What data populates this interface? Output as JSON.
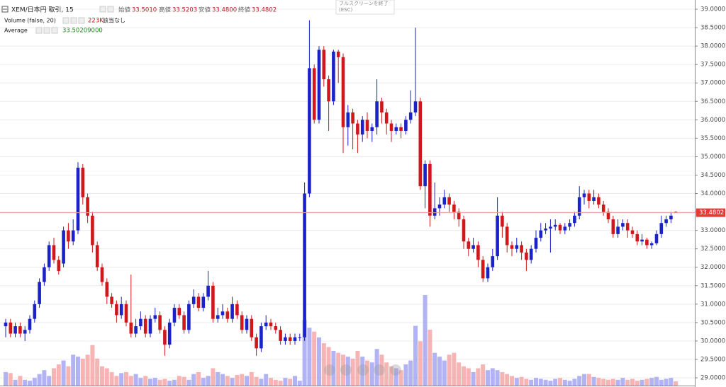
{
  "chart_data": {
    "type": "candlestick",
    "title": "XEM/日本円 取引, 15",
    "header": {
      "open_label": "始値",
      "open": "33.5010",
      "high_label": "高値",
      "high": "33.5203",
      "low_label": "安値",
      "low": "33.4800",
      "close_label": "終値",
      "close": "33.4802"
    },
    "volume_study": {
      "name": "Volume (false, 20)",
      "value": "223K",
      "note": "該当なし"
    },
    "average_study": {
      "name": "Average",
      "value": "33.50209000"
    },
    "tooltip": {
      "line1": "フルスクリーンを終了",
      "line2": "(ESC)"
    },
    "open": [
      30.4,
      30.5,
      30.2,
      30.4,
      30.2,
      30.3,
      30.6,
      31.0,
      31.6,
      32.0,
      32.6,
      32.2,
      32.1,
      33.0,
      32.7,
      33.0,
      34.7,
      33.9,
      33.4,
      32.6,
      32.0,
      31.6,
      31.2,
      31.0,
      30.7,
      31.0,
      30.5,
      30.2,
      30.4,
      30.6,
      30.2,
      30.6,
      30.7,
      30.3,
      29.9,
      30.5,
      30.9,
      30.7,
      30.3,
      31.0,
      31.2,
      30.9,
      31.2,
      31.5,
      30.6,
      30.7,
      30.8,
      30.6,
      31.0,
      30.7,
      30.3,
      30.6,
      30.1,
      29.8,
      30.4,
      30.5,
      30.4,
      30.3,
      30.0,
      30.1,
      30.0,
      30.1,
      30.1,
      34.0,
      37.4,
      36.0,
      37.9,
      37.1,
      36.5,
      37.85,
      37.7,
      35.8,
      36.2,
      35.9,
      35.6,
      36.0,
      35.7,
      35.8,
      36.5,
      36.2,
      35.9,
      35.7,
      35.8,
      35.7,
      36.0,
      36.2,
      36.5,
      34.2,
      34.8,
      33.4,
      33.6,
      33.7,
      33.9,
      33.7,
      33.5,
      33.3,
      32.7,
      32.5,
      32.6,
      32.2,
      31.7,
      32.0,
      32.3,
      33.4,
      33.1,
      32.6,
      32.5,
      32.6,
      32.4,
      32.2,
      32.5,
      32.8,
      33.0,
      33.05,
      33.1,
      33.15,
      33.0,
      33.1,
      33.2,
      33.4,
      33.9,
      34.0,
      33.8,
      33.9,
      33.7,
      33.5,
      33.3,
      32.9,
      33.1,
      33.2,
      33.0,
      32.9,
      32.7,
      32.75,
      32.6,
      32.65,
      32.9,
      33.2,
      33.3,
      33.501
    ],
    "high": [
      30.6,
      30.6,
      30.5,
      30.5,
      30.4,
      30.7,
      31.1,
      31.7,
      32.1,
      32.7,
      32.8,
      32.3,
      33.1,
      33.2,
      33.3,
      34.85,
      34.8,
      34.0,
      33.5,
      32.7,
      32.1,
      31.7,
      31.3,
      31.1,
      31.2,
      31.1,
      31.8,
      30.6,
      30.8,
      30.7,
      30.7,
      30.9,
      30.8,
      30.4,
      30.6,
      31.0,
      31.0,
      30.8,
      31.1,
      31.4,
      31.3,
      31.3,
      31.9,
      31.6,
      30.9,
      31.0,
      30.9,
      31.2,
      31.1,
      30.8,
      30.7,
      30.7,
      30.2,
      30.5,
      30.7,
      30.6,
      30.5,
      30.4,
      30.2,
      30.2,
      30.2,
      30.2,
      34.3,
      38.7,
      37.5,
      38.0,
      38.0,
      37.2,
      37.9,
      37.9,
      37.8,
      36.4,
      36.3,
      36.0,
      36.1,
      36.2,
      35.9,
      37.1,
      36.6,
      36.3,
      36.0,
      35.9,
      35.9,
      36.1,
      36.8,
      38.5,
      36.6,
      34.9,
      34.9,
      34.3,
      33.9,
      34.1,
      34.0,
      33.8,
      33.6,
      33.4,
      32.8,
      32.8,
      32.7,
      32.3,
      32.1,
      32.5,
      33.9,
      33.5,
      33.2,
      32.7,
      32.8,
      32.7,
      32.5,
      32.6,
      33.0,
      33.2,
      33.2,
      33.3,
      33.3,
      33.2,
      33.2,
      33.3,
      33.5,
      34.2,
      34.1,
      34.1,
      34.1,
      34.0,
      33.8,
      33.6,
      33.4,
      33.3,
      33.3,
      33.3,
      33.1,
      33.0,
      32.9,
      32.8,
      32.7,
      33.0,
      33.4,
      33.4,
      33.5,
      33.5203
    ],
    "low": [
      30.1,
      30.1,
      30.1,
      30.1,
      30.0,
      30.2,
      30.5,
      30.9,
      31.5,
      31.9,
      32.1,
      31.8,
      32.0,
      32.5,
      32.6,
      32.9,
      33.7,
      33.2,
      32.4,
      31.9,
      31.5,
      31.0,
      30.9,
      30.5,
      30.6,
      30.4,
      30.1,
      30.1,
      30.3,
      30.1,
      30.1,
      30.5,
      30.2,
      29.6,
      29.8,
      30.4,
      30.6,
      30.2,
      30.2,
      30.9,
      30.8,
      30.8,
      31.1,
      30.5,
      30.5,
      30.6,
      30.5,
      30.5,
      30.6,
      30.2,
      30.2,
      30.0,
      29.6,
      29.7,
      30.3,
      30.3,
      30.2,
      29.9,
      29.9,
      29.9,
      29.9,
      30.0,
      30.0,
      33.9,
      35.9,
      35.9,
      36.9,
      35.7,
      36.4,
      37.0,
      35.1,
      35.3,
      35.2,
      35.1,
      35.4,
      35.5,
      35.4,
      35.6,
      35.9,
      35.6,
      35.4,
      35.6,
      35.5,
      35.6,
      35.9,
      36.1,
      34.1,
      33.6,
      33.1,
      33.3,
      33.4,
      33.6,
      33.5,
      33.3,
      33.1,
      32.5,
      32.3,
      32.4,
      32.0,
      31.6,
      31.6,
      31.9,
      32.2,
      32.8,
      32.4,
      32.3,
      32.4,
      32.2,
      31.9,
      32.1,
      32.4,
      32.7,
      32.9,
      32.4,
      33.0,
      32.9,
      32.9,
      33.0,
      33.1,
      33.3,
      33.7,
      33.6,
      33.7,
      33.6,
      33.4,
      33.2,
      32.8,
      32.8,
      33.0,
      32.8,
      32.8,
      32.6,
      32.6,
      32.5,
      32.5,
      32.6,
      32.8,
      33.1,
      33.2,
      33.48
    ],
    "close": [
      30.5,
      30.2,
      30.4,
      30.2,
      30.3,
      30.6,
      31.0,
      31.6,
      32.0,
      32.6,
      32.2,
      31.9,
      33.0,
      32.7,
      33.0,
      34.7,
      33.9,
      33.4,
      32.6,
      32.0,
      31.6,
      31.2,
      31.0,
      30.7,
      31.0,
      30.5,
      30.2,
      30.4,
      30.6,
      30.2,
      30.6,
      30.7,
      30.3,
      29.9,
      30.5,
      30.9,
      30.7,
      30.3,
      31.0,
      31.2,
      30.9,
      31.2,
      31.5,
      30.6,
      30.7,
      30.8,
      30.6,
      31.0,
      30.7,
      30.3,
      30.6,
      30.1,
      29.8,
      30.4,
      30.5,
      30.4,
      30.3,
      30.0,
      30.1,
      30.0,
      30.1,
      30.1,
      34.0,
      37.4,
      36.0,
      37.9,
      37.1,
      36.5,
      37.85,
      37.7,
      35.8,
      36.2,
      35.9,
      35.6,
      36.0,
      35.7,
      35.8,
      36.5,
      36.2,
      35.9,
      35.7,
      35.8,
      35.7,
      36.0,
      36.2,
      36.5,
      34.2,
      34.8,
      33.4,
      33.6,
      33.7,
      33.9,
      33.7,
      33.5,
      33.3,
      32.7,
      32.5,
      32.6,
      32.2,
      31.7,
      32.0,
      32.3,
      33.4,
      33.1,
      32.6,
      32.5,
      32.6,
      32.4,
      32.2,
      32.5,
      32.8,
      33.0,
      33.05,
      33.1,
      33.15,
      33.0,
      33.1,
      33.2,
      33.4,
      33.9,
      34.0,
      33.8,
      33.9,
      33.7,
      33.5,
      33.3,
      32.9,
      33.1,
      33.2,
      33.0,
      32.9,
      32.7,
      32.75,
      32.6,
      32.65,
      32.9,
      33.2,
      33.3,
      33.4,
      33.4802
    ],
    "volume": [
      700,
      650,
      300,
      500,
      300,
      250,
      400,
      600,
      800,
      500,
      900,
      1100,
      1300,
      1000,
      1600,
      1500,
      1400,
      1600,
      2100,
      1400,
      1000,
      900,
      700,
      500,
      650,
      700,
      500,
      600,
      400,
      500,
      350,
      400,
      300,
      350,
      250,
      300,
      500,
      450,
      300,
      600,
      700,
      400,
      500,
      900,
      700,
      600,
      500,
      400,
      550,
      600,
      500,
      700,
      450,
      350,
      600,
      400,
      300,
      250,
      400,
      350,
      500,
      250,
      3400,
      3000,
      2800,
      2500,
      2200,
      2000,
      1800,
      1700,
      1600,
      1500,
      1400,
      1800,
      1500,
      1300,
      1200,
      1900,
      1600,
      1200,
      1000,
      900,
      800,
      1100,
      1300,
      3100,
      2300,
      4700,
      2900,
      1700,
      1500,
      1300,
      1600,
      1700,
      1200,
      1000,
      900,
      700,
      900,
      1100,
      800,
      900,
      800,
      700,
      600,
      500,
      400,
      450,
      350,
      300,
      400,
      350,
      300,
      250,
      350,
      400,
      300,
      250,
      350,
      500,
      600,
      600,
      450,
      400,
      350,
      300,
      350,
      300,
      400,
      300,
      350,
      250,
      300,
      350,
      400,
      450,
      300,
      350,
      400,
      223
    ],
    "ylim": [
      28.79,
      39.25
    ],
    "yticks": [
      {
        "value": 29,
        "label": "29.0000"
      },
      {
        "value": 29.5,
        "label": "29.5000"
      },
      {
        "value": 30,
        "label": "30.0000"
      },
      {
        "value": 30.5,
        "label": "30.5000"
      },
      {
        "value": 31,
        "label": "31.0000"
      },
      {
        "value": 31.5,
        "label": "31.5000"
      },
      {
        "value": 32,
        "label": "32.0000"
      },
      {
        "value": 32.5,
        "label": "32.5000"
      },
      {
        "value": 33,
        "label": "33.0000"
      },
      {
        "value": 33.5,
        "label": "33.5000"
      },
      {
        "value": 34,
        "label": "34.0000"
      },
      {
        "value": 34.5,
        "label": "34.5000"
      },
      {
        "value": 35,
        "label": "35.0000"
      },
      {
        "value": 35.5,
        "label": "35.5000"
      },
      {
        "value": 36,
        "label": "36.0000"
      },
      {
        "value": 36.5,
        "label": "36.5000"
      },
      {
        "value": 37,
        "label": "37.0000"
      },
      {
        "value": 37.5,
        "label": "37.5000"
      },
      {
        "value": 38,
        "label": "38.0000"
      },
      {
        "value": 38.5,
        "label": "38.5000"
      },
      {
        "value": 39,
        "label": "39.0000"
      }
    ],
    "volume_ylim": [
      0,
      20000
    ],
    "price_line": 33.4802,
    "grid": true,
    "up_color": "#1a22c8",
    "down_color": "#d0181c",
    "volume_up_color": "#a3a6f2",
    "volume_down_color": "#f6a7a7",
    "price_line_color": "#f19a9a",
    "price_label_color": "#e53935"
  }
}
